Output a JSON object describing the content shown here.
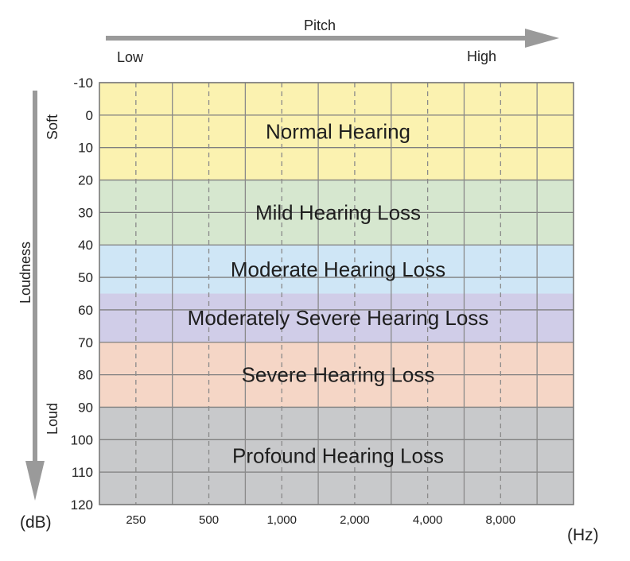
{
  "chart_data": {
    "type": "heatmap",
    "pitch_label": "Pitch",
    "pitch_low": "Low",
    "pitch_high": "High",
    "loudness_label": "Loudness",
    "loudness_soft": "Soft",
    "loudness_loud": "Loud",
    "y_unit": "(dB)",
    "x_unit": "(Hz)",
    "y_range": [
      -10,
      120
    ],
    "y_ticks": [
      "-10",
      "0",
      "10",
      "20",
      "30",
      "40",
      "50",
      "60",
      "70",
      "80",
      "90",
      "100",
      "110",
      "120"
    ],
    "x_ticks": [
      "250",
      "500",
      "1,000",
      "2,000",
      "4,000",
      "8,000"
    ],
    "y_direction": "increasing downward",
    "grid": true,
    "bands": [
      {
        "name": "Normal Hearing",
        "from_db": -10,
        "to_db": 20,
        "color": "#fbf2b0"
      },
      {
        "name": "Mild Hearing Loss",
        "from_db": 20,
        "to_db": 40,
        "color": "#d6e7cf"
      },
      {
        "name": "Moderate Hearing Loss",
        "from_db": 40,
        "to_db": 55,
        "color": "#cfe6f6"
      },
      {
        "name": "Moderately Severe Hearing Loss",
        "from_db": 55,
        "to_db": 70,
        "color": "#d0cde8"
      },
      {
        "name": "Severe Hearing Loss",
        "from_db": 70,
        "to_db": 90,
        "color": "#f5d6c6"
      },
      {
        "name": "Profound Hearing Loss",
        "from_db": 90,
        "to_db": 120,
        "color": "#c8c9cb"
      }
    ]
  }
}
